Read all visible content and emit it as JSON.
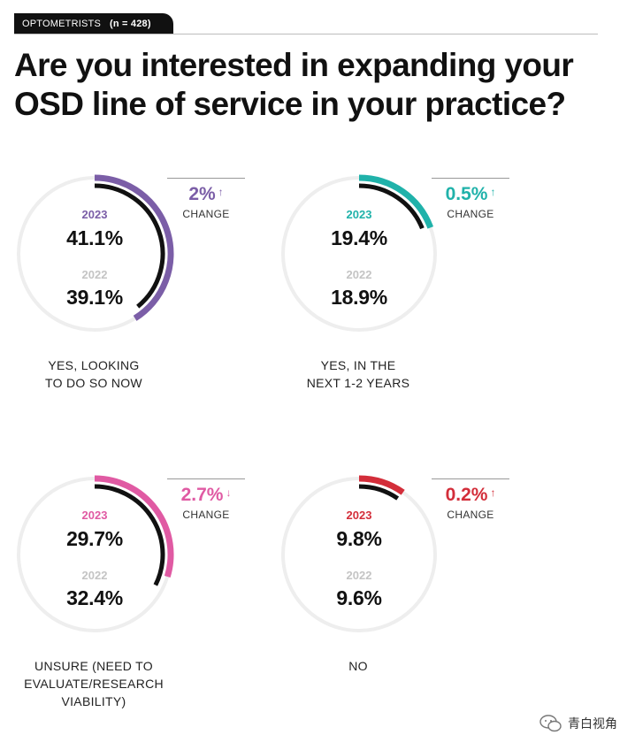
{
  "header": {
    "tag": "OPTOMETRISTS",
    "n": "(n = 428)"
  },
  "title": "Are you interested in expanding your OSD line of service in your practice?",
  "chart_data": {
    "type": "radial-bar",
    "title": "Are you interested in expanding your OSD line of service in your practice?",
    "year_current": "2023",
    "year_previous": "2022",
    "change_label": "CHANGE",
    "panels": [
      {
        "label": "YES, LOOKING TO DO SO NOW",
        "value_2023": 41.1,
        "value_2022": 39.1,
        "text_2023": "41.1%",
        "text_2022": "39.1%",
        "change": "2%",
        "direction": "up",
        "color": "#7b5ea7"
      },
      {
        "label": "YES, IN THE NEXT 1-2 YEARS",
        "value_2023": 19.4,
        "value_2022": 18.9,
        "text_2023": "19.4%",
        "text_2022": "18.9%",
        "change": "0.5%",
        "direction": "up",
        "color": "#20b2aa"
      },
      {
        "label": "UNSURE (NEED TO EVALUATE/RESEARCH VIABILITY)",
        "value_2023": 29.7,
        "value_2022": 32.4,
        "text_2023": "29.7%",
        "text_2022": "32.4%",
        "change": "2.7%",
        "direction": "down",
        "color": "#e05aa3"
      },
      {
        "label": "NO",
        "value_2023": 9.8,
        "value_2022": 9.6,
        "text_2023": "9.8%",
        "text_2022": "9.6%",
        "change": "0.2%",
        "direction": "up",
        "color": "#d32e3a"
      }
    ]
  },
  "watermark": "青白视角"
}
